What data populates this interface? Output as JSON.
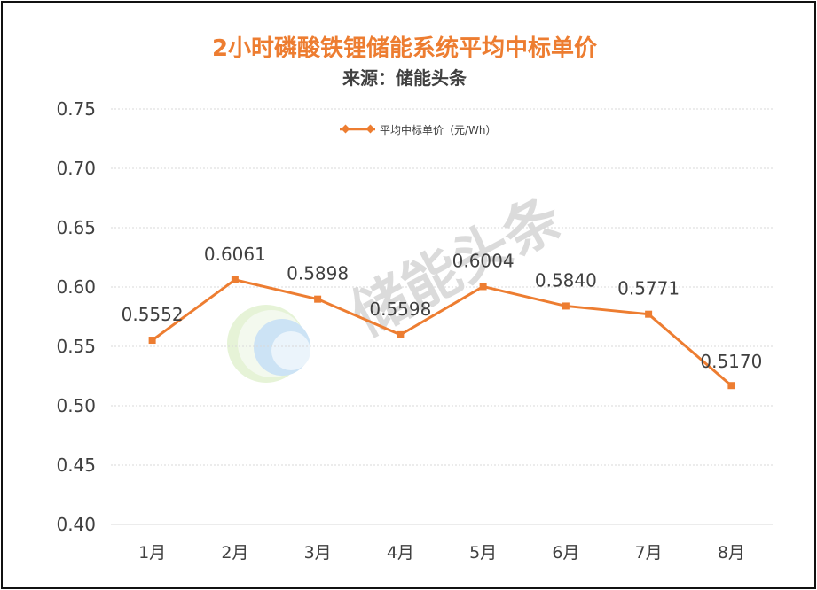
{
  "chart_data": {
    "type": "line",
    "title": "2小时磷酸铁锂储能系统平均中标单价",
    "subtitle": "来源：储能头条",
    "categories": [
      "1月",
      "2月",
      "3月",
      "4月",
      "5月",
      "6月",
      "7月",
      "8月"
    ],
    "series": [
      {
        "name": "平均中标单价（元/Wh）",
        "values": [
          0.5552,
          0.6061,
          0.5898,
          0.5598,
          0.6004,
          0.584,
          0.5771,
          0.517
        ],
        "labels": [
          "0.5552",
          "0.6061",
          "0.5898",
          "0.5598",
          "0.6004",
          "0.5840",
          "0.5771",
          "0.5170"
        ]
      }
    ],
    "ylim": [
      0.4,
      0.75
    ],
    "yticks": [
      "0.40",
      "0.45",
      "0.50",
      "0.55",
      "0.60",
      "0.65",
      "0.70",
      "0.75"
    ],
    "xlabel": "",
    "ylabel": "",
    "grid": true,
    "legend_position": "top-center",
    "watermark": "储能头条",
    "colors": {
      "title": "#ED7D31",
      "subtitle": "#404040",
      "line": "#ED7D31",
      "grid": "#D9D9D9",
      "tick": "#404040"
    }
  }
}
